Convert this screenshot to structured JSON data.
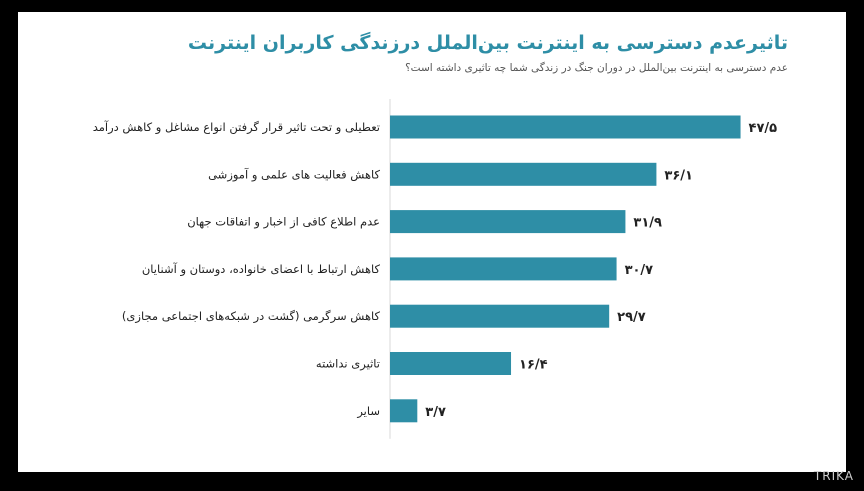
{
  "chart_data": {
    "type": "bar",
    "orientation": "horizontal",
    "title": "تاثیرعدم دسترسی به اینترنت بین‌الملل درزندگی کاربران اینترنت",
    "subtitle": "عدم دسترسی به اینترنت بین‌الملل در دوران جنگ در زندگی شما چه تاثیری داشته است؟",
    "categories": [
      "تعطیلی و تحت تاثیر قرار گرفتن انواع مشاغل و کاهش درآمد",
      "کاهش فعالیت های علمی و آموزشی",
      "عدم اطلاع کافی از اخبار و اتفاقات جهان",
      "کاهش ارتباط با اعضای خانواده، دوستان و آشنایان",
      "کاهش سرگرمی (گشت در شبکه‌های اجتماعی مجازی)",
      "تاثیری نداشته",
      "سایر"
    ],
    "values": [
      47.5,
      36.1,
      31.9,
      30.7,
      29.7,
      16.4,
      3.7
    ],
    "value_labels": [
      "۴۷/۵",
      "۳۶/۱",
      "۳۱/۹",
      "۳۰/۷",
      "۲۹/۷",
      "۱۶/۴",
      "۳/۷"
    ],
    "xlim": [
      0,
      50
    ],
    "grid": false,
    "legend": "none",
    "bar_color": "#2e8ea6"
  },
  "watermark": "TRIKA"
}
